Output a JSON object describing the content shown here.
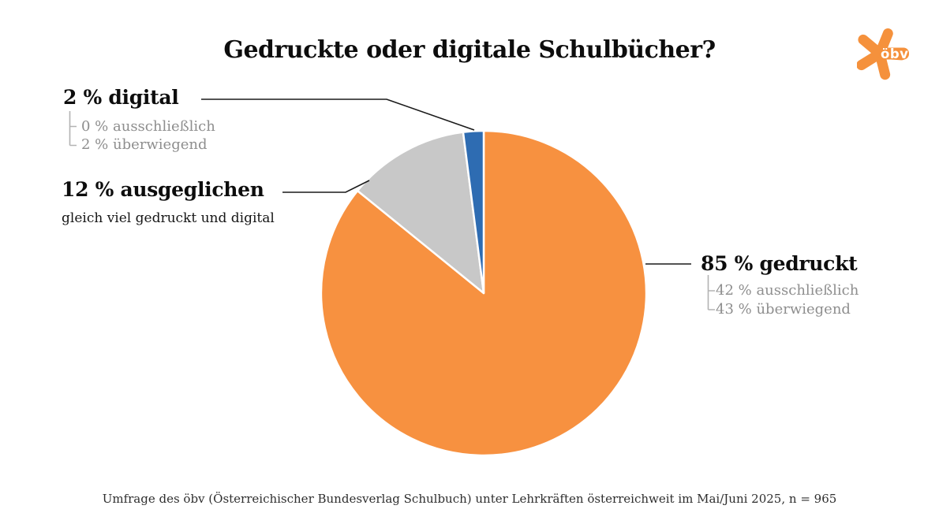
{
  "logo": {
    "text": "öbv",
    "color": "#F5913C"
  },
  "chart_data": {
    "type": "pie",
    "title": "Gedruckte oder digitale Schulbücher?",
    "start_angle_deg": 0,
    "direction": "clockwise",
    "legend": "none",
    "slices": [
      {
        "id": "gedruckt",
        "label": "85 % gedruckt",
        "value": 85,
        "color": "#F79140",
        "breakdown": [
          "42 % ausschließlich",
          "43 % überwiegend"
        ]
      },
      {
        "id": "ausgeglichen",
        "label": "12 % ausgeglichen",
        "value": 12,
        "color": "#C8C8C8",
        "note": "gleich viel gedruckt und digital"
      },
      {
        "id": "digital",
        "label": "2 % digital",
        "value": 2,
        "color": "#2E6CB2",
        "breakdown": [
          "0 % ausschließlich",
          "2 % überwiegend"
        ]
      }
    ],
    "source": "Umfrage des öbv (Österreichischer Bundesverlag Schulbuch) unter Lehrkräften österreichweit im Mai/Juni 2025, n = 965"
  }
}
